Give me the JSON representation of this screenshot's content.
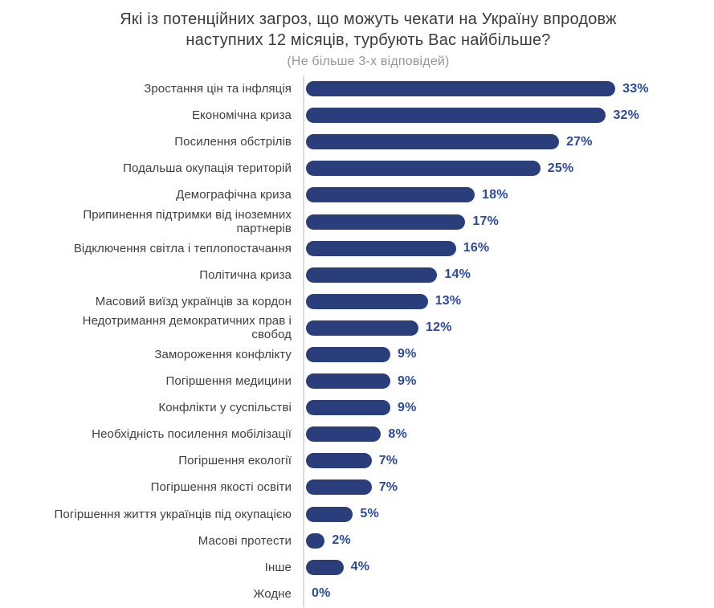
{
  "chart_data": {
    "type": "bar",
    "orientation": "horizontal",
    "title": "Які із потенційних загроз, що можуть чекати на Україну впродовж наступних 12 місяців, турбують Вас найбільше?",
    "subtitle": "(Не більше 3-х відповідей)",
    "unit": "%",
    "xlim": [
      0,
      35
    ],
    "grid": false,
    "legend": false,
    "bar_color": "#2a3e7c",
    "value_label_color": "#2b4a9b",
    "category_label_color": "#3f3f3f",
    "axis_line_color": "#dcdcdc",
    "categories": [
      "Зростання цін та інфляція",
      "Економічна криза",
      "Посилення обстрілів",
      "Подальша окупація територій",
      "Демографічна криза",
      "Припинення підтримки від іноземних\nпартнерів",
      "Відключення світла і теплопостачання",
      "Політична криза",
      "Масовий виїзд українців за кордон",
      "Недотримання демократичних прав і\nсвобод",
      "Замороження конфлікту",
      "Погіршення медицини",
      "Конфлікти у суспільстві",
      "Необхідність посилення мобілізації",
      "Погіршення екології",
      "Погіршення якості освіти",
      "Погіршення життя українців під окупацією",
      "Масові протести",
      "Інше",
      "Жодне"
    ],
    "values": [
      33,
      32,
      27,
      25,
      18,
      17,
      16,
      14,
      13,
      12,
      9,
      9,
      9,
      8,
      7,
      7,
      5,
      2,
      4,
      0
    ],
    "value_labels": [
      "33%",
      "32%",
      "27%",
      "25%",
      "18%",
      "17%",
      "16%",
      "14%",
      "13%",
      "12%",
      "9%",
      "9%",
      "9%",
      "8%",
      "7%",
      "7%",
      "5%",
      "2%",
      "4%",
      "0%"
    ]
  }
}
